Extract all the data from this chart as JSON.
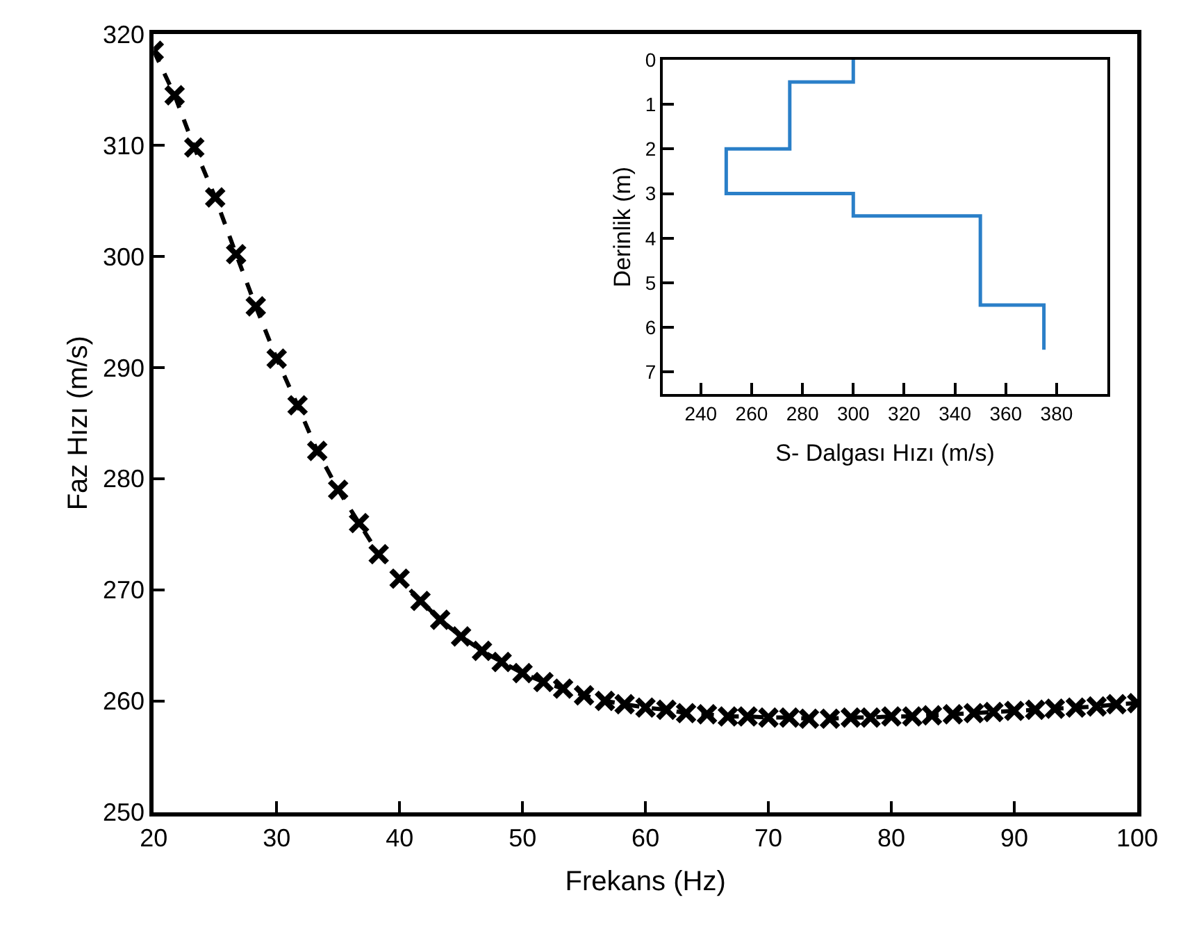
{
  "chart_data": [
    {
      "type": "line",
      "xlabel": "Frekans (Hz)",
      "ylabel": "Faz Hızı (m/s)",
      "xlim": [
        20,
        100
      ],
      "xticks": [
        20,
        30,
        40,
        50,
        60,
        70,
        80,
        90,
        100
      ],
      "ylim": [
        250,
        320
      ],
      "yticks": [
        250,
        260,
        270,
        280,
        290,
        300,
        310,
        320
      ],
      "marker": "cross",
      "line_style": "dashed",
      "series": [
        {
          "color": "#000000",
          "x": [
            20,
            21.7,
            23.3,
            25,
            26.7,
            28.3,
            30,
            31.7,
            33.3,
            35,
            36.7,
            38.3,
            40,
            41.7,
            43.3,
            45,
            46.7,
            48.3,
            50,
            51.7,
            53.3,
            55,
            56.7,
            58.3,
            60,
            61.7,
            63.3,
            65,
            66.7,
            68.3,
            70,
            71.7,
            73.3,
            75,
            76.7,
            78.3,
            80,
            81.7,
            83.3,
            85,
            86.7,
            88.3,
            90,
            91.7,
            93.3,
            95,
            96.7,
            98.3,
            100
          ],
          "values": [
            318.5,
            314.5,
            309.8,
            305.3,
            300.2,
            295.5,
            290.8,
            286.6,
            282.5,
            279.0,
            276.0,
            273.2,
            271.0,
            269.0,
            267.3,
            265.8,
            264.5,
            263.5,
            262.5,
            261.7,
            261.1,
            260.5,
            260.0,
            259.7,
            259.4,
            259.2,
            258.9,
            258.8,
            258.6,
            258.6,
            258.5,
            258.5,
            258.4,
            258.4,
            258.5,
            258.5,
            258.6,
            258.6,
            258.7,
            258.8,
            258.9,
            259.0,
            259.1,
            259.2,
            259.3,
            259.4,
            259.5,
            259.7,
            259.8
          ]
        }
      ]
    },
    {
      "type": "line",
      "xlabel": "S- Dalgası Hızı (m/s)",
      "ylabel": "Derinlik (m)",
      "xlim": [
        225,
        400
      ],
      "xticks": [
        240,
        260,
        280,
        300,
        320,
        340,
        360,
        380
      ],
      "ylim": [
        7.5,
        0
      ],
      "yticks": [
        0,
        1,
        2,
        3,
        4,
        5,
        6,
        7
      ],
      "line_style": "solid",
      "series": [
        {
          "color": "#2a7fc8",
          "x": [
            300,
            300,
            275,
            275,
            250,
            250,
            300,
            300,
            350,
            350,
            375,
            375
          ],
          "values": [
            0,
            0.5,
            0.5,
            2,
            2,
            3,
            3,
            3.5,
            3.5,
            5.5,
            5.5,
            6.5
          ]
        }
      ]
    }
  ]
}
